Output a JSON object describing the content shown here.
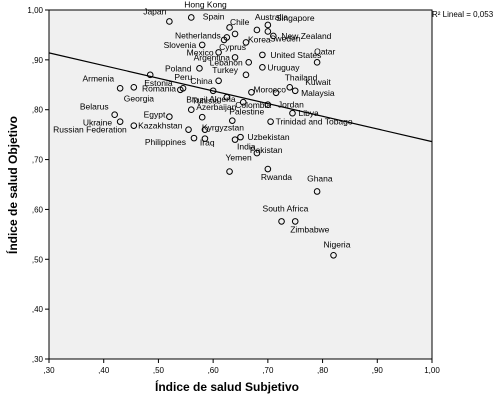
{
  "chart_data": {
    "type": "scatter",
    "xlabel": "Índice de salud Subjetivo",
    "ylabel": "Índice de salud Objetivo",
    "xlim": [
      0.3,
      1.0
    ],
    "ylim": [
      0.3,
      1.0
    ],
    "xticks": [
      ",30",
      ",40",
      ",50",
      ",60",
      ",70",
      ",80",
      ",90",
      "1,00"
    ],
    "yticks": [
      ",30",
      ",40",
      ",50",
      ",60",
      ",70",
      ",80",
      ",90",
      "1,00"
    ],
    "grid": false,
    "r_squared_label": "R² Lineal = 0,053",
    "fit_line": {
      "x1": 0.3,
      "y1": 0.914,
      "x2": 1.0,
      "y2": 0.736
    },
    "points": [
      {
        "label": "Japan",
        "x": 0.52,
        "y": 0.977
      },
      {
        "label": "Hong Kong",
        "x": 0.56,
        "y": 0.985
      },
      {
        "label": "Spain",
        "x": 0.63,
        "y": 0.965
      },
      {
        "label": "Chile",
        "x": 0.64,
        "y": 0.952
      },
      {
        "label": "Australia",
        "x": 0.68,
        "y": 0.96
      },
      {
        "label": "Singapore",
        "x": 0.7,
        "y": 0.97
      },
      {
        "label": "Netherlands",
        "x": 0.625,
        "y": 0.945
      },
      {
        "label": "New Zealand",
        "x": 0.71,
        "y": 0.948
      },
      {
        "label": "Sweden",
        "x": 0.7,
        "y": 0.957
      },
      {
        "label": "Korea",
        "x": 0.66,
        "y": 0.935
      },
      {
        "label": "Slovenia",
        "x": 0.58,
        "y": 0.93
      },
      {
        "label": "Cyprus",
        "x": 0.62,
        "y": 0.94
      },
      {
        "label": "United States",
        "x": 0.69,
        "y": 0.91
      },
      {
        "label": "Qatar",
        "x": 0.79,
        "y": 0.895
      },
      {
        "label": "Mexico",
        "x": 0.61,
        "y": 0.915
      },
      {
        "label": "Argentina",
        "x": 0.64,
        "y": 0.905
      },
      {
        "label": "Lebanon",
        "x": 0.665,
        "y": 0.895
      },
      {
        "label": "Uruguay",
        "x": 0.69,
        "y": 0.885
      },
      {
        "label": "Poland",
        "x": 0.575,
        "y": 0.883
      },
      {
        "label": "Turkey",
        "x": 0.66,
        "y": 0.87
      },
      {
        "label": "Armenia",
        "x": 0.43,
        "y": 0.843
      },
      {
        "label": "Estonia",
        "x": 0.485,
        "y": 0.87
      },
      {
        "label": "Peru",
        "x": 0.54,
        "y": 0.84
      },
      {
        "label": "China",
        "x": 0.61,
        "y": 0.858
      },
      {
        "label": "Morocco",
        "x": 0.67,
        "y": 0.835
      },
      {
        "label": "Thailand",
        "x": 0.74,
        "y": 0.845
      },
      {
        "label": "Kuwait",
        "x": 0.75,
        "y": 0.838
      },
      {
        "label": "Romania",
        "x": 0.545,
        "y": 0.843
      },
      {
        "label": "Georgia",
        "x": 0.455,
        "y": 0.845
      },
      {
        "label": "Malaysia",
        "x": 0.715,
        "y": 0.834
      },
      {
        "label": "Algeria",
        "x": 0.6,
        "y": 0.838
      },
      {
        "label": "Tunisia",
        "x": 0.625,
        "y": 0.825
      },
      {
        "label": "Colombia",
        "x": 0.655,
        "y": 0.815
      },
      {
        "label": "Jordan",
        "x": 0.7,
        "y": 0.81
      },
      {
        "label": "Belarus",
        "x": 0.42,
        "y": 0.79
      },
      {
        "label": "Brazil",
        "x": 0.56,
        "y": 0.8
      },
      {
        "label": "Azerbaijan",
        "x": 0.58,
        "y": 0.785
      },
      {
        "label": "Palestine",
        "x": 0.635,
        "y": 0.778
      },
      {
        "label": "Libya",
        "x": 0.745,
        "y": 0.793
      },
      {
        "label": "Egypt",
        "x": 0.52,
        "y": 0.786
      },
      {
        "label": "Ukraine",
        "x": 0.43,
        "y": 0.776
      },
      {
        "label": "Trinidad and Tobago",
        "x": 0.705,
        "y": 0.776
      },
      {
        "label": "Russian Federation",
        "x": 0.455,
        "y": 0.768
      },
      {
        "label": "Kazakhstan",
        "x": 0.555,
        "y": 0.76
      },
      {
        "label": "Kyrgyzstan",
        "x": 0.585,
        "y": 0.76
      },
      {
        "label": "Uzbekistan",
        "x": 0.65,
        "y": 0.745
      },
      {
        "label": "Philippines",
        "x": 0.565,
        "y": 0.743
      },
      {
        "label": "Iraq",
        "x": 0.585,
        "y": 0.742
      },
      {
        "label": "India",
        "x": 0.64,
        "y": 0.74
      },
      {
        "label": "Pakistan",
        "x": 0.68,
        "y": 0.713
      },
      {
        "label": "Yemen",
        "x": 0.63,
        "y": 0.676
      },
      {
        "label": "Rwanda",
        "x": 0.7,
        "y": 0.681
      },
      {
        "label": "Ghana",
        "x": 0.79,
        "y": 0.636
      },
      {
        "label": "South Africa",
        "x": 0.725,
        "y": 0.576
      },
      {
        "label": "Zimbabwe",
        "x": 0.75,
        "y": 0.576
      },
      {
        "label": "Nigeria",
        "x": 0.82,
        "y": 0.508
      }
    ]
  }
}
